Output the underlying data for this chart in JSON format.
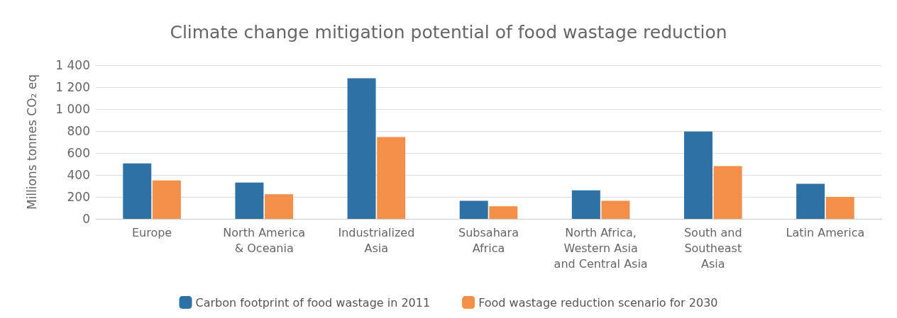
{
  "chart_data": {
    "type": "bar",
    "title": "Climate change mitigation potential of food wastage reduction",
    "ylabel": "Millions tonnes CO₂ eq",
    "categories": [
      "Europe",
      "North America\n& Oceania",
      "Industrialized\nAsia",
      "Subsahara\nAfrica",
      "North Africa,\nWestern Asia\nand Central Asia",
      "South and\nSoutheast\nAsia",
      "Latin America"
    ],
    "series": [
      {
        "name": "Carbon footprint of food wastage in 2011",
        "color": "#2e72a5",
        "values": [
          505,
          330,
          1280,
          165,
          260,
          795,
          320
        ]
      },
      {
        "name": "Food wastage reduction scenario for 2030",
        "color": "#f38f48",
        "values": [
          350,
          225,
          745,
          115,
          165,
          480,
          200
        ]
      }
    ],
    "ylim": [
      0,
      1400
    ],
    "yticks": [
      0,
      200,
      400,
      600,
      800,
      {
        "value": 1000,
        "label": "1 000"
      },
      {
        "value": 1200,
        "label": "1 200"
      },
      {
        "value": 1400,
        "label": "1 400"
      }
    ],
    "grid": "y",
    "legend": "bottom"
  }
}
